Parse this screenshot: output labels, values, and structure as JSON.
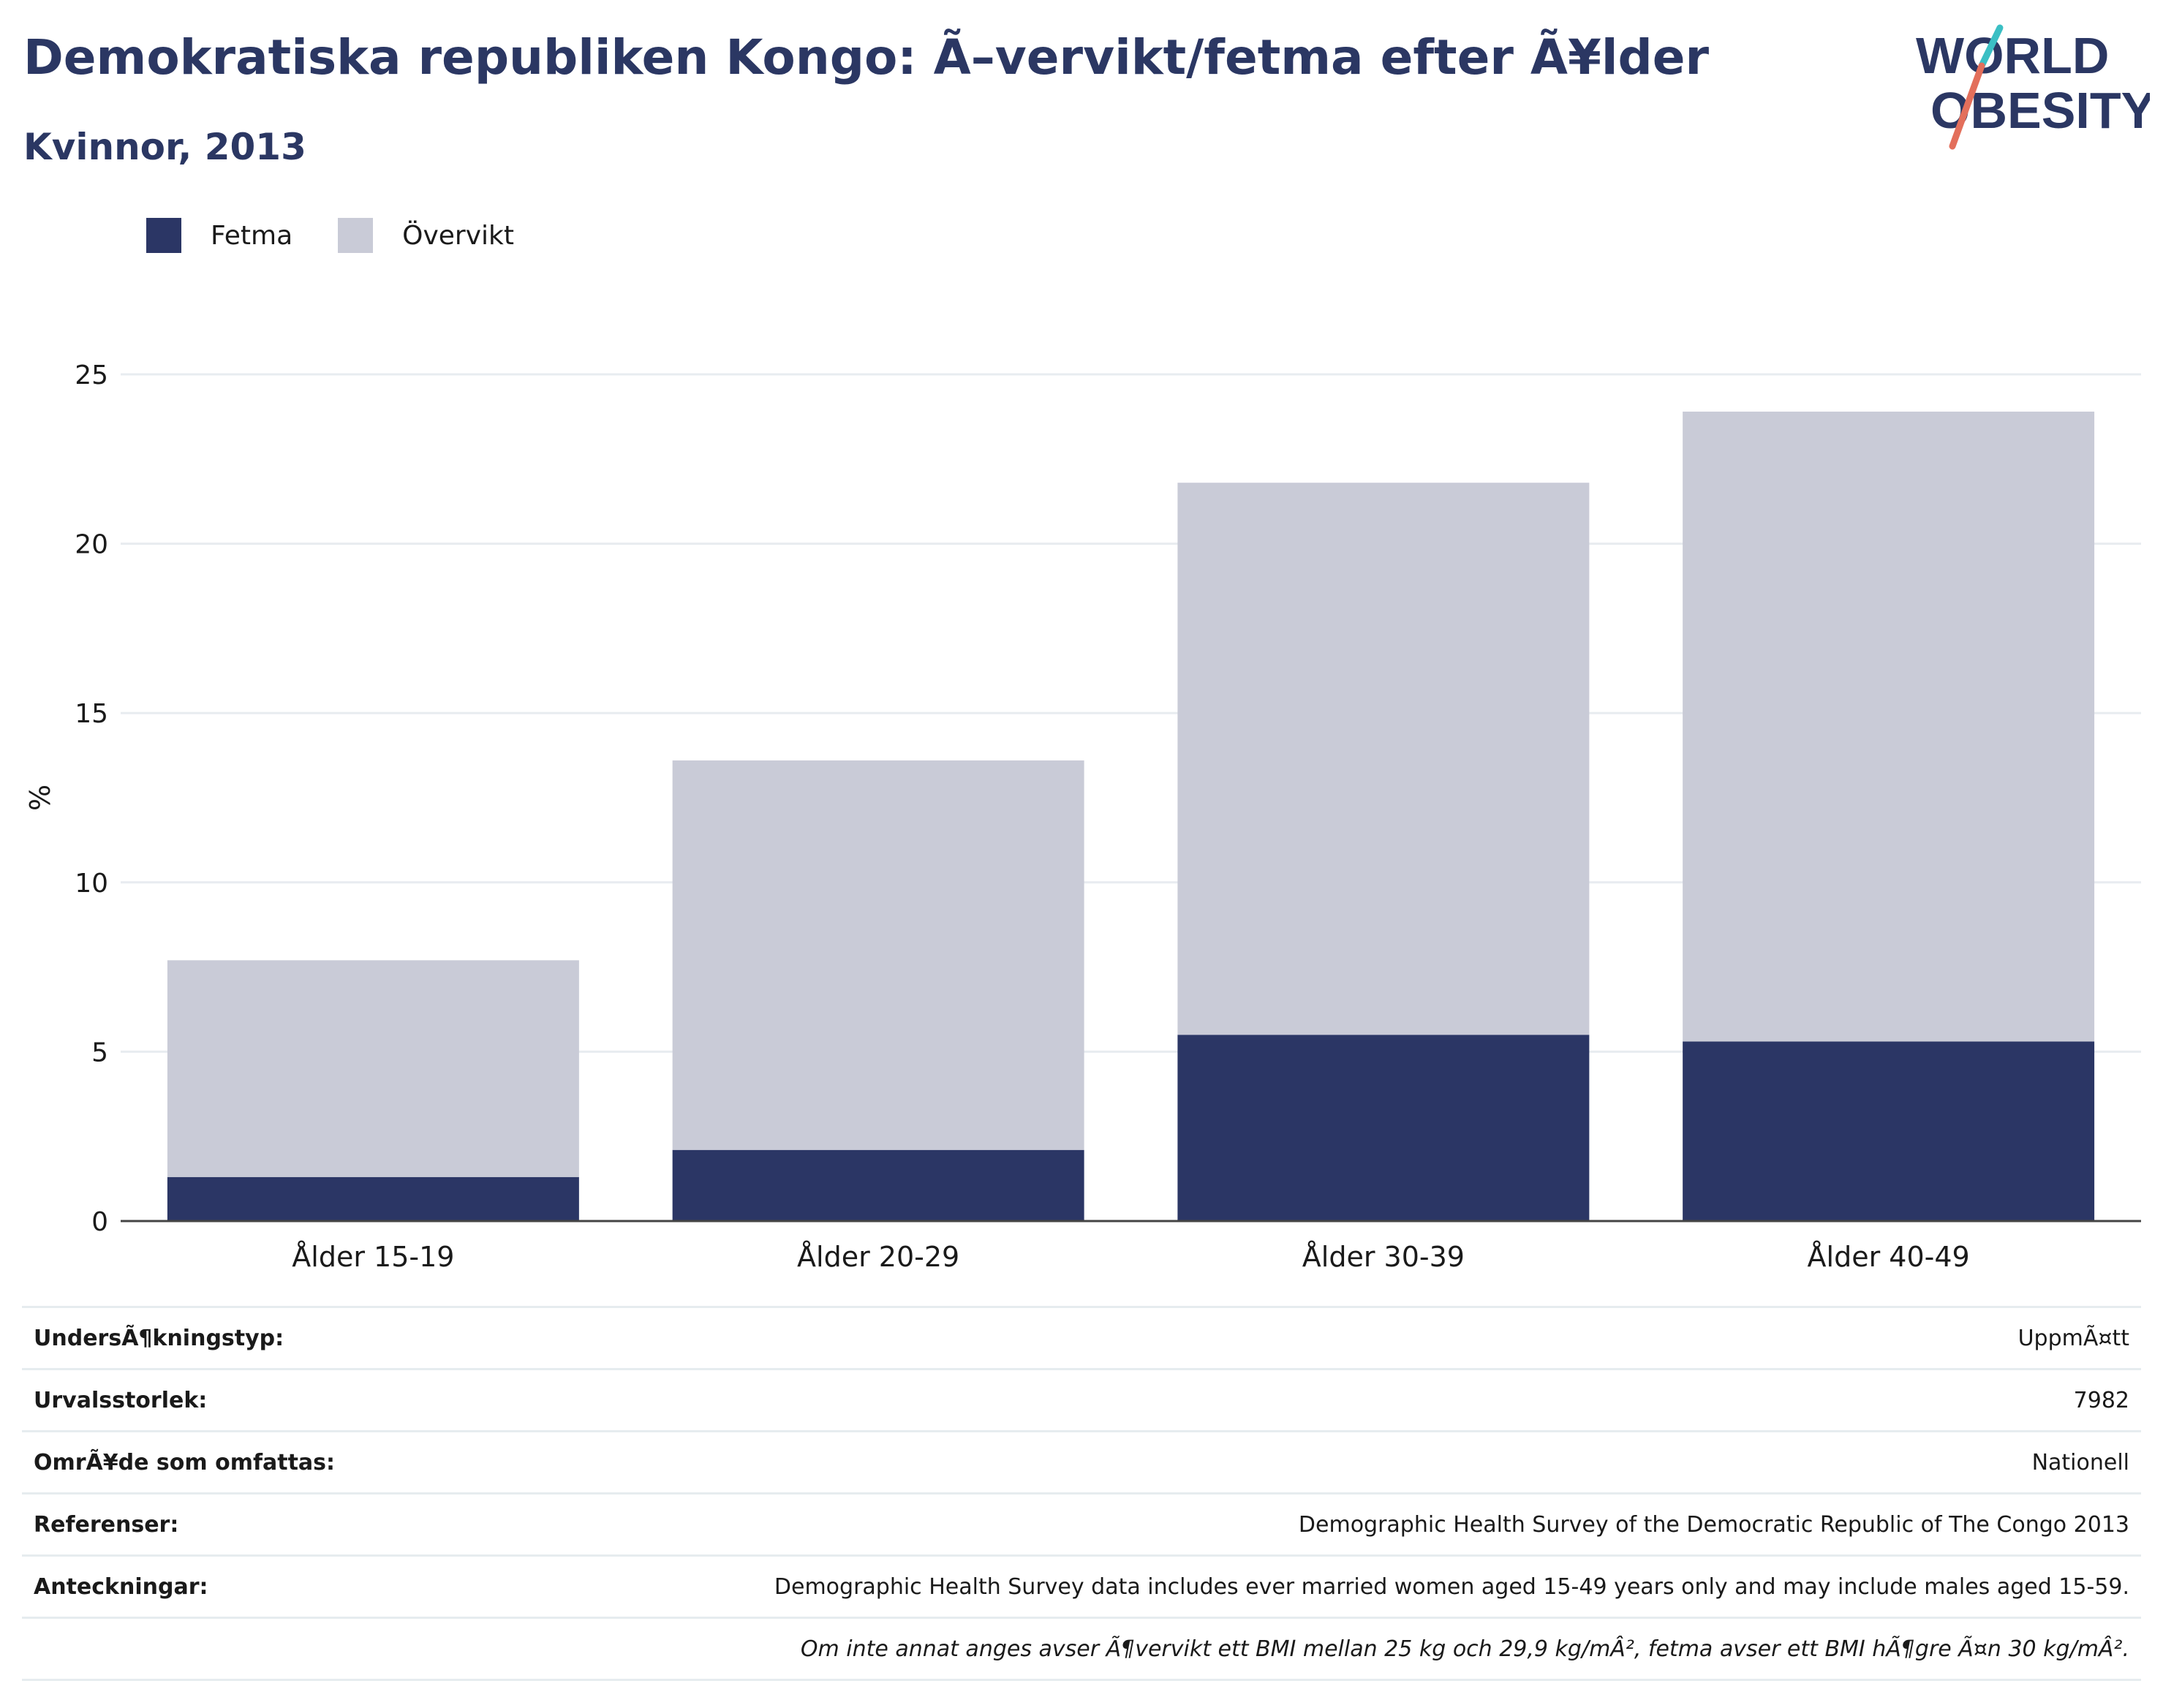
{
  "header": {
    "title": "Demokratiska republiken Kongo: Ã–vervikt/fetma efter Ã¥lder",
    "subtitle": "Kvinnor, 2013"
  },
  "logo": {
    "line1": "WORLD",
    "line2": "OBESITY"
  },
  "legend": [
    {
      "label": "Fetma",
      "color": "#2b3665"
    },
    {
      "label": "Övervikt",
      "color": "#c9cbd7"
    }
  ],
  "chart_data": {
    "type": "bar",
    "stacked": true,
    "categories": [
      "Ålder 15-19",
      "Ålder 20-29",
      "Ålder 30-39",
      "Ålder 40-49"
    ],
    "series": [
      {
        "name": "Fetma",
        "color": "#2b3665",
        "values": [
          1.3,
          2.1,
          5.5,
          5.3
        ]
      },
      {
        "name": "Övervikt",
        "color": "#c9cbd7",
        "values": [
          6.4,
          11.5,
          16.3,
          18.6
        ]
      }
    ],
    "ylabel": "%",
    "ylim": [
      0,
      25
    ],
    "yticks": [
      "0",
      "5",
      "10",
      "15",
      "20",
      "25"
    ],
    "grid": true,
    "legend_position": "top-left"
  },
  "info": {
    "rows": [
      {
        "key": "UndersÃ¶kningstyp:",
        "value": "UppmÃ¤tt"
      },
      {
        "key": "Urvalsstorlek:",
        "value": "7982"
      },
      {
        "key": "OmrÃ¥de som omfattas:",
        "value": "Nationell"
      },
      {
        "key": "Referenser:",
        "value": "Demographic Health Survey of the Democratic Republic of The Congo 2013"
      },
      {
        "key": "Anteckningar:",
        "value": "Demographic Health Survey data includes ever married women aged 15-49 years only and may include males aged 15-59."
      }
    ],
    "footnote": "Om inte annat anges avser Ã¶vervikt ett BMI mellan 25 kg och 29,9 kg/mÂ², fetma avser ett BMI hÃ¶gre Ã¤n 30 kg/mÂ²."
  }
}
